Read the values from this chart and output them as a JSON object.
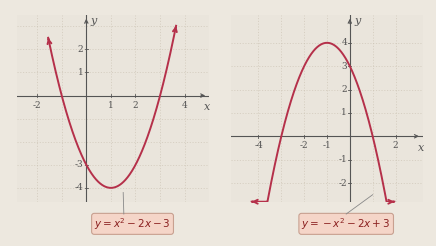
{
  "left_graph": {
    "xlim": [
      -2.8,
      5.0
    ],
    "ylim": [
      -4.6,
      3.5
    ],
    "x_grid_start": -2,
    "x_grid_end": 4,
    "y_grid_start": -4,
    "y_grid_end": 3,
    "xtick_labels": [
      [
        -2,
        "-2"
      ],
      [
        1,
        "1"
      ],
      [
        2,
        "2"
      ],
      [
        4,
        "4"
      ]
    ],
    "ytick_labels": [
      [
        -3,
        "-3"
      ],
      [
        -4,
        "-4"
      ],
      [
        1,
        "1"
      ],
      [
        2,
        "2"
      ]
    ],
    "xlabel": "x",
    "ylabel": "y",
    "equation": "$y = x^2 - 2x - 3$",
    "curve_color": "#b5304a",
    "x_curve_start": -1.55,
    "x_curve_end": 3.65,
    "label_box_color": "#f5d5c8",
    "label_box_edge": "#c8a090"
  },
  "right_graph": {
    "xlim": [
      -5.2,
      3.2
    ],
    "ylim": [
      -2.8,
      5.2
    ],
    "x_grid_start": -4,
    "x_grid_end": 2,
    "y_grid_start": -2,
    "y_grid_end": 4,
    "xtick_labels": [
      [
        -4,
        "-4"
      ],
      [
        -2,
        "-2"
      ],
      [
        -1,
        "-1"
      ],
      [
        2,
        "2"
      ]
    ],
    "ytick_labels": [
      [
        -1,
        "-1"
      ],
      [
        -2,
        "-2"
      ],
      [
        1,
        "1"
      ],
      [
        2,
        "2"
      ],
      [
        3,
        "3"
      ],
      [
        4,
        "4"
      ]
    ],
    "xlabel": "x",
    "ylabel": "y",
    "equation": "$y = -x^2 - 2x + 3$",
    "curve_color": "#b5304a",
    "x_curve_start": -4.3,
    "x_curve_end": 1.95,
    "label_box_color": "#f5d5c8",
    "label_box_edge": "#c8a090"
  },
  "bg_color": "#ede8df",
  "plot_bg": "#eae5dc",
  "grid_color": "#c8bfaf",
  "axis_color": "#555555",
  "tick_font_size": 6.5,
  "axis_label_font_size": 8,
  "eq_font_size": 7.5,
  "curve_lw": 1.4
}
